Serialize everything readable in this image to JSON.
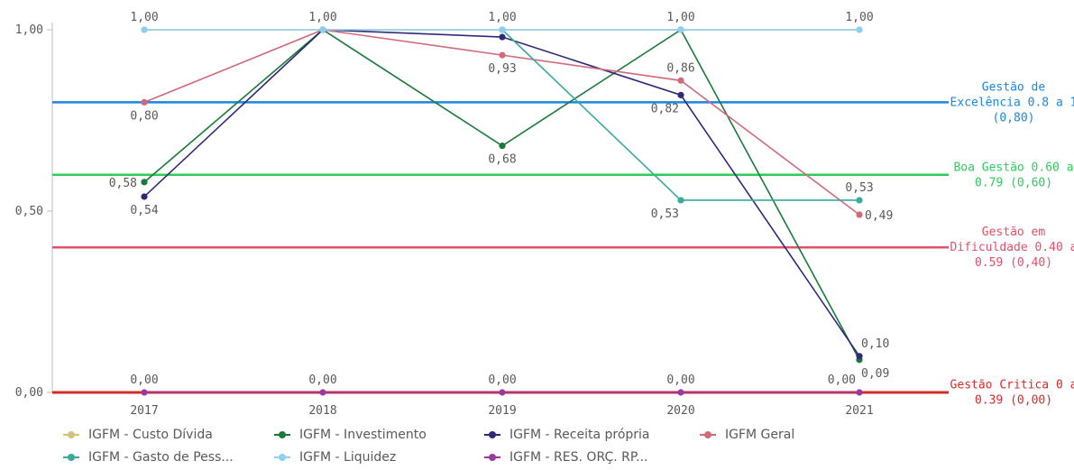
{
  "chart_data": {
    "type": "line",
    "categories": [
      "2017",
      "2018",
      "2019",
      "2020",
      "2021"
    ],
    "ylim": [
      0,
      1
    ],
    "yticks": [
      "0,00",
      "0,50",
      "1,00"
    ],
    "grid": false,
    "legend_position": "bottom",
    "series": [
      {
        "name": "IGFM - Custo Dívida",
        "color": "#d2c27c",
        "values": [
          1.0,
          1.0,
          1.0,
          1.0,
          1.0
        ],
        "show_labels": false,
        "label_pos": [
          null,
          null,
          null,
          null,
          null
        ]
      },
      {
        "name": "IGFM - Investimento",
        "color": "#1a7a3a",
        "values": [
          0.58,
          1.0,
          0.68,
          1.0,
          0.09
        ],
        "show_labels": true,
        "label_pos": [
          "left",
          null,
          "below",
          null,
          "below-right"
        ]
      },
      {
        "name": "IGFM - Receita própria",
        "color": "#2e2a7a",
        "values": [
          0.54,
          1.0,
          0.98,
          0.82,
          0.1
        ],
        "show_labels": true,
        "label_pos": [
          "below",
          null,
          null,
          "below-left",
          "above-right"
        ]
      },
      {
        "name": "IGFM Geral",
        "color": "#d06a7a",
        "values": [
          0.8,
          1.0,
          0.93,
          0.86,
          0.49
        ],
        "show_labels": true,
        "label_pos": [
          "below",
          null,
          "below",
          "above",
          "right"
        ]
      },
      {
        "name": "IGFM - Gasto de Pess...",
        "color": "#3aaa9a",
        "values": [
          null,
          null,
          1.0,
          0.53,
          0.53
        ],
        "show_labels": true,
        "label_pos": [
          null,
          null,
          null,
          "below-left",
          "above"
        ]
      },
      {
        "name": "IGFM - Liquidez",
        "color": "#8ecff0",
        "values": [
          1.0,
          1.0,
          1.0,
          1.0,
          1.0
        ],
        "show_labels": true,
        "label_pos": [
          "above",
          "above",
          "above",
          "above",
          "above"
        ]
      },
      {
        "name": "IGFM - RES. ORÇ. RP...",
        "color": "#9a3aa0",
        "values": [
          0.0,
          0.0,
          0.0,
          0.0,
          0.0
        ],
        "show_labels": true,
        "label_pos": [
          "above",
          "above",
          "above",
          "above",
          "above-left"
        ]
      }
    ],
    "labels": {
      "IGFM - Investimento": [
        "0,58",
        "",
        "0,68",
        "",
        "0,09"
      ],
      "IGFM - Receita própria": [
        "0,54",
        "",
        "",
        "0,82",
        "0,10"
      ],
      "IGFM Geral": [
        "0,80",
        "",
        "0,93",
        "0,86",
        "0,49"
      ],
      "IGFM - Gasto de Pess...": [
        "",
        "",
        "",
        "0,53",
        "0,53"
      ],
      "IGFM - Liquidez": [
        "1,00",
        "1,00",
        "1,00",
        "1,00",
        "1,00"
      ],
      "IGFM - RES. ORÇ. RP...": [
        "0,00",
        "0,00",
        "0,00",
        "0,00",
        "0,00"
      ]
    },
    "reference_lines": [
      {
        "value": 0.8,
        "color": "#1a86e0",
        "lines": [
          "Gestão de",
          "Excelência 0.8 a 1",
          "(0,80)"
        ]
      },
      {
        "value": 0.6,
        "color": "#2ecc5a",
        "lines": [
          "Boa Gestão 0.60 a",
          "0.79 (0,60)"
        ]
      },
      {
        "value": 0.4,
        "color": "#e0506a",
        "lines": [
          "Gestão em",
          "Dificuldade 0.40 a",
          "0.59 (0,40)"
        ]
      },
      {
        "value": 0.0,
        "color": "#d62a2a",
        "lines": [
          "Gestão Critica 0 a",
          "0.39 (0,00)"
        ]
      }
    ]
  }
}
